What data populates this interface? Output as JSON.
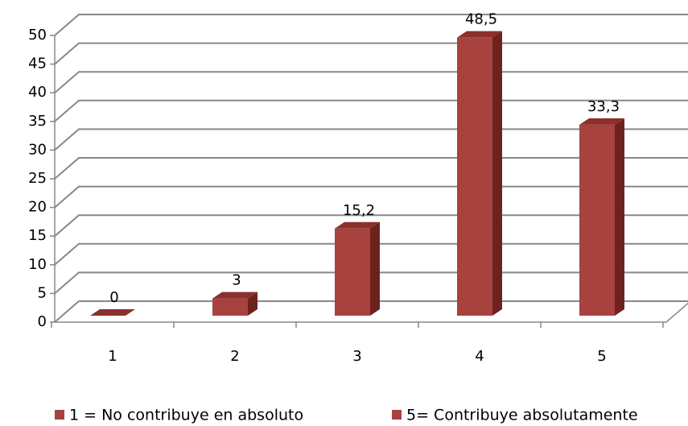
{
  "chart_data": {
    "type": "bar3d",
    "categories": [
      "1",
      "2",
      "3",
      "4",
      "5"
    ],
    "values": [
      0,
      3,
      15.2,
      48.5,
      33.3
    ],
    "value_labels": [
      "0",
      "3",
      "15,2",
      "48,5",
      "33,3"
    ],
    "color": "#a8423f",
    "ylim": [
      0,
      50
    ],
    "yticks": [
      0,
      5,
      10,
      15,
      20,
      25,
      30,
      35,
      40,
      45,
      50
    ],
    "grid": true,
    "legend": [
      {
        "label": "1 = No contribuye en absoluto",
        "color": "#a8423f"
      },
      {
        "label": "5= Contribuye absolutamente",
        "color": "#a8423f"
      }
    ],
    "legend_position": "bottom"
  }
}
